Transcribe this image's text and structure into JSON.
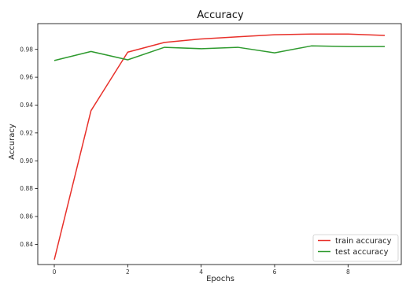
{
  "chart_data": {
    "type": "line",
    "title": "Accuracy",
    "xlabel": "Epochs",
    "ylabel": "Accuracy",
    "x": [
      0,
      1,
      2,
      3,
      4,
      5,
      6,
      7,
      8,
      9
    ],
    "xlim": [
      -0.45,
      9.45
    ],
    "ylim": [
      0.8255,
      0.9985
    ],
    "xticks": [
      0,
      2,
      4,
      6,
      8
    ],
    "yticks": [
      0.84,
      0.86,
      0.88,
      0.9,
      0.92,
      0.94,
      0.96,
      0.98
    ],
    "ytick_labels": [
      "0.84",
      "0.86",
      "0.88",
      "0.90",
      "0.92",
      "0.94",
      "0.96",
      "0.98"
    ],
    "grid": false,
    "legend_position": "bottom-right",
    "series": [
      {
        "name": "train accuracy",
        "color": "#e8302a",
        "values": [
          0.829,
          0.936,
          0.978,
          0.985,
          0.9875,
          0.989,
          0.9905,
          0.991,
          0.991,
          0.99
        ]
      },
      {
        "name": "test accuracy",
        "color": "#2e9a2e",
        "values": [
          0.972,
          0.9785,
          0.9725,
          0.9815,
          0.9805,
          0.9815,
          0.9775,
          0.9825,
          0.982,
          0.982
        ]
      }
    ]
  }
}
